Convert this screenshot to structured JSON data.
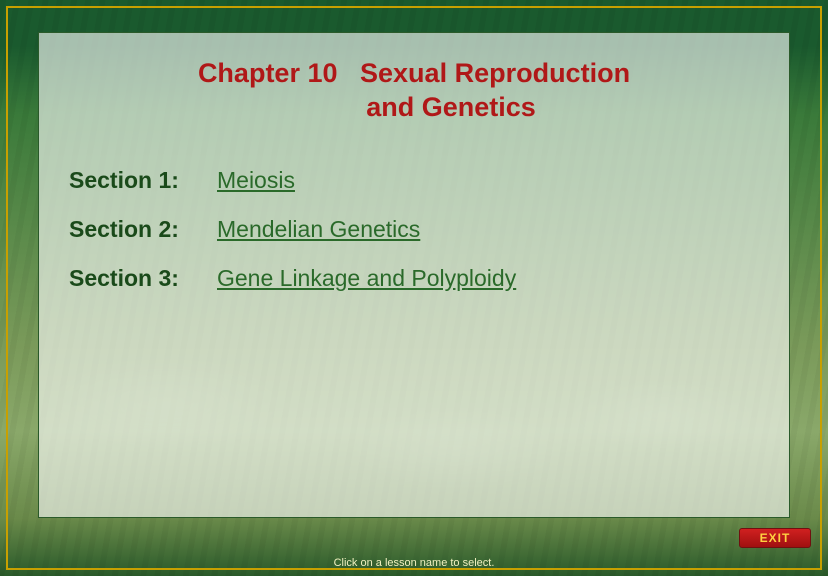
{
  "chapter": {
    "number_label": "Chapter 10",
    "title_line1": "Sexual Reproduction",
    "title_line2": "and Genetics",
    "title_color": "#b01818"
  },
  "sections": [
    {
      "label": "Section 1:",
      "link_text": "Meiosis"
    },
    {
      "label": "Section 2:",
      "link_text": "Mendelian Genetics"
    },
    {
      "label": "Section 3:",
      "link_text": "Gene Linkage and Polyploidy"
    }
  ],
  "section_label_color": "#1a4a1a",
  "section_link_color": "#2a6a2a",
  "exit": {
    "label": "EXIT",
    "bg_color": "#c01818",
    "text_color": "#ffd040"
  },
  "footer": {
    "text": "Click on a lesson name to select.",
    "color": "#f0f0c0"
  },
  "frame": {
    "outer_border": "#c8a000",
    "inner_bg": "rgba(255,255,255,0.62)"
  },
  "fontsize": {
    "title": 27,
    "section": 23,
    "footer": 11,
    "exit": 12
  }
}
